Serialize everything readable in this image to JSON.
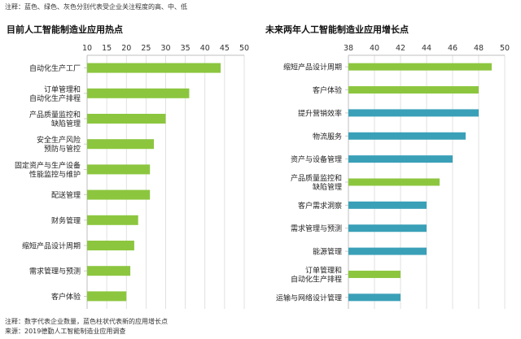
{
  "note_top": "注释：蓝色、绿色、灰色分别代表受企业关注程度的高、中、低",
  "footer": {
    "note": "注释：数字代表企业数量，蓝色柱状代表新的应用增长点",
    "source": "来源：2019德勤人工智能制造业应用调查"
  },
  "colors": {
    "green": "#8cc63f",
    "blue": "#3aa0b8",
    "grid": "#d9d9d9",
    "axis": "#bfbfbf"
  },
  "chart_data": [
    {
      "type": "bar",
      "orientation": "horizontal",
      "title": "目前人工智能制造业应用热点",
      "xlim": [
        10,
        50
      ],
      "ticks": [
        10,
        15,
        20,
        25,
        30,
        35,
        40,
        45,
        50
      ],
      "grid": true,
      "categories": [
        [
          "自动化生产工厂"
        ],
        [
          "订单管理和",
          "自动化生产排程"
        ],
        [
          "产品质量监控和",
          "缺陷管理"
        ],
        [
          "安全生产风险",
          "预防与管控"
        ],
        [
          "固定资产与生产设备",
          "性能监控与维护"
        ],
        [
          "配送管理"
        ],
        [
          "财务管理"
        ],
        [
          "缩短产品设计周期"
        ],
        [
          "需求管理与预测"
        ],
        [
          "客户体验"
        ]
      ],
      "values": [
        44,
        36,
        30,
        27,
        26,
        26,
        23,
        22,
        21,
        20
      ],
      "bar_colors": [
        "green",
        "green",
        "green",
        "green",
        "green",
        "green",
        "green",
        "green",
        "green",
        "green"
      ]
    },
    {
      "type": "bar",
      "orientation": "horizontal",
      "title": "未来两年人工智能制造业应用增长点",
      "xlim": [
        38,
        50
      ],
      "ticks": [
        38,
        40,
        42,
        44,
        46,
        48,
        50
      ],
      "grid": true,
      "categories": [
        [
          "缩短产品设计周期"
        ],
        [
          "客户体验"
        ],
        [
          "提升营销效率"
        ],
        [
          "物流服务"
        ],
        [
          "资产与设备管理"
        ],
        [
          "产品质量监控和",
          "缺陷管理"
        ],
        [
          "客户需求洞察"
        ],
        [
          "需求管理与预测"
        ],
        [
          "能源管理"
        ],
        [
          "订单管理和",
          "自动化生产排程"
        ],
        [
          "运输与网络设计管理"
        ]
      ],
      "values": [
        49,
        48,
        48,
        47,
        46,
        45,
        44,
        44,
        44,
        42,
        42
      ],
      "bar_colors": [
        "green",
        "green",
        "blue",
        "blue",
        "blue",
        "green",
        "blue",
        "blue",
        "blue",
        "green",
        "blue"
      ]
    }
  ]
}
